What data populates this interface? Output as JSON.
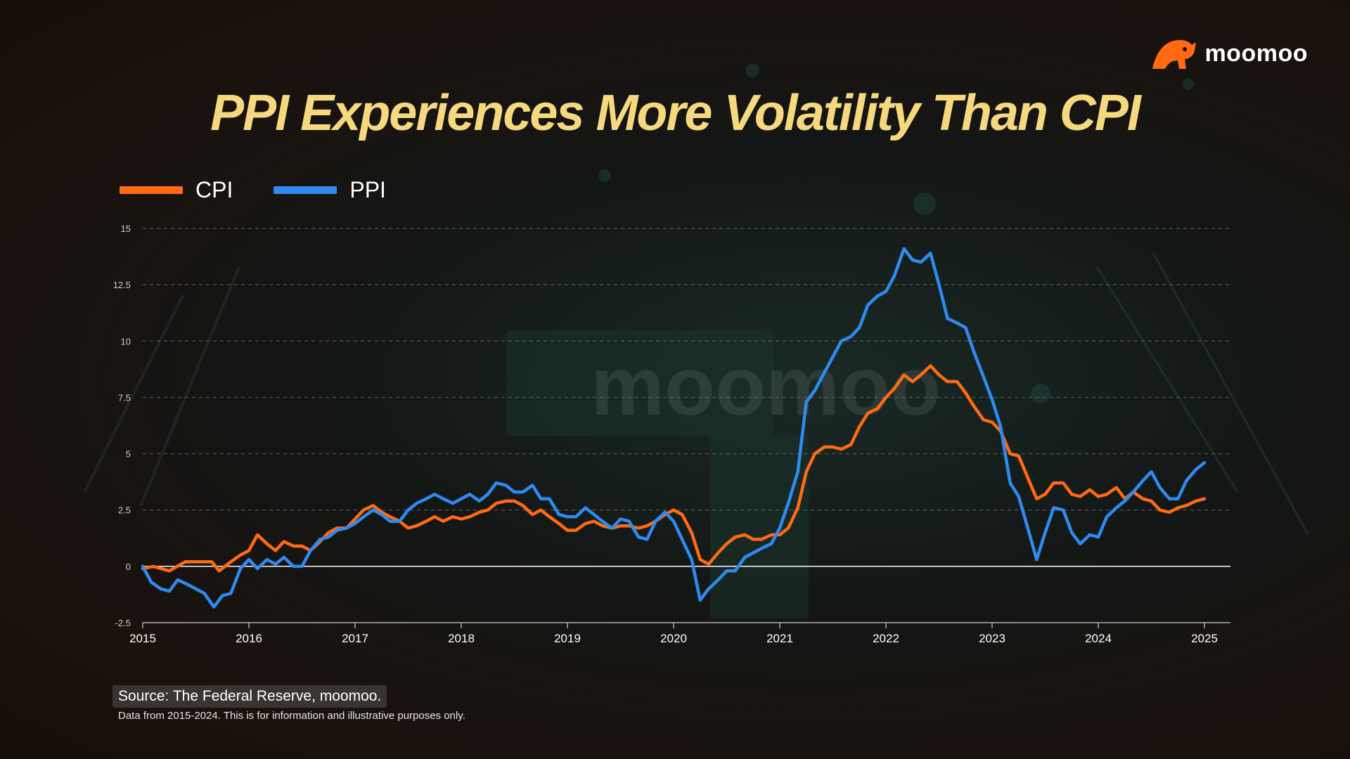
{
  "brand": {
    "name": "moomoo",
    "logo_icon": "bull-icon",
    "accent": "#ff6a13"
  },
  "title": "PPI Experiences More Volatility Than CPI",
  "watermark": "moomoo",
  "source": "Source: The Federal Reserve, moomoo.",
  "disclaimer": "Data from 2015-2024. This is for information and illustrative purposes only.",
  "legend": [
    {
      "name": "CPI",
      "color": "#ff6a13"
    },
    {
      "name": "PPI",
      "color": "#2f8bf0"
    }
  ],
  "chart_data": {
    "type": "line",
    "title": "PPI Experiences More Volatility Than CPI",
    "xlabel": "",
    "ylabel": "",
    "xlim": [
      2015,
      2025
    ],
    "ylim": [
      -2.5,
      15
    ],
    "xticks": [
      "2015",
      "2016",
      "2017",
      "2018",
      "2019",
      "2020",
      "2021",
      "2022",
      "2023",
      "2024",
      "2025"
    ],
    "yticks": [
      "15",
      "12.5",
      "10",
      "7.5",
      "5",
      "2.5",
      "0",
      "-2.5"
    ],
    "grid": true,
    "legend_position": "top-left",
    "series": [
      {
        "name": "CPI",
        "color": "#ff6a13",
        "points": [
          [
            2015.0,
            -0.1
          ],
          [
            2015.1,
            0.0
          ],
          [
            2015.25,
            -0.2
          ],
          [
            2015.4,
            0.2
          ],
          [
            2015.55,
            0.2
          ],
          [
            2015.65,
            0.2
          ],
          [
            2015.72,
            -0.2
          ],
          [
            2015.83,
            0.2
          ],
          [
            2015.92,
            0.5
          ],
          [
            2016.0,
            0.7
          ],
          [
            2016.08,
            1.4
          ],
          [
            2016.17,
            1.0
          ],
          [
            2016.25,
            0.7
          ],
          [
            2016.33,
            1.1
          ],
          [
            2016.42,
            0.9
          ],
          [
            2016.5,
            0.9
          ],
          [
            2016.58,
            0.7
          ],
          [
            2016.67,
            1.1
          ],
          [
            2016.75,
            1.5
          ],
          [
            2016.83,
            1.7
          ],
          [
            2016.92,
            1.7
          ],
          [
            2017.0,
            2.1
          ],
          [
            2017.08,
            2.5
          ],
          [
            2017.17,
            2.7
          ],
          [
            2017.25,
            2.4
          ],
          [
            2017.33,
            2.2
          ],
          [
            2017.42,
            2.0
          ],
          [
            2017.5,
            1.7
          ],
          [
            2017.58,
            1.8
          ],
          [
            2017.67,
            2.0
          ],
          [
            2017.75,
            2.2
          ],
          [
            2017.83,
            2.0
          ],
          [
            2017.92,
            2.2
          ],
          [
            2018.0,
            2.1
          ],
          [
            2018.08,
            2.2
          ],
          [
            2018.17,
            2.4
          ],
          [
            2018.25,
            2.5
          ],
          [
            2018.33,
            2.8
          ],
          [
            2018.42,
            2.9
          ],
          [
            2018.5,
            2.9
          ],
          [
            2018.58,
            2.7
          ],
          [
            2018.67,
            2.3
          ],
          [
            2018.75,
            2.5
          ],
          [
            2018.83,
            2.2
          ],
          [
            2018.92,
            1.9
          ],
          [
            2019.0,
            1.6
          ],
          [
            2019.08,
            1.6
          ],
          [
            2019.17,
            1.9
          ],
          [
            2019.25,
            2.0
          ],
          [
            2019.33,
            1.8
          ],
          [
            2019.42,
            1.7
          ],
          [
            2019.5,
            1.8
          ],
          [
            2019.58,
            1.8
          ],
          [
            2019.67,
            1.7
          ],
          [
            2019.75,
            1.8
          ],
          [
            2019.83,
            2.0
          ],
          [
            2019.92,
            2.3
          ],
          [
            2020.0,
            2.5
          ],
          [
            2020.08,
            2.3
          ],
          [
            2020.17,
            1.5
          ],
          [
            2020.25,
            0.3
          ],
          [
            2020.33,
            0.1
          ],
          [
            2020.42,
            0.6
          ],
          [
            2020.5,
            1.0
          ],
          [
            2020.58,
            1.3
          ],
          [
            2020.67,
            1.4
          ],
          [
            2020.75,
            1.2
          ],
          [
            2020.83,
            1.2
          ],
          [
            2020.92,
            1.4
          ],
          [
            2021.0,
            1.4
          ],
          [
            2021.08,
            1.7
          ],
          [
            2021.17,
            2.6
          ],
          [
            2021.25,
            4.2
          ],
          [
            2021.33,
            5.0
          ],
          [
            2021.42,
            5.3
          ],
          [
            2021.5,
            5.3
          ],
          [
            2021.58,
            5.2
          ],
          [
            2021.67,
            5.4
          ],
          [
            2021.75,
            6.2
          ],
          [
            2021.83,
            6.8
          ],
          [
            2021.92,
            7.0
          ],
          [
            2022.0,
            7.5
          ],
          [
            2022.08,
            7.9
          ],
          [
            2022.17,
            8.5
          ],
          [
            2022.25,
            8.2
          ],
          [
            2022.33,
            8.5
          ],
          [
            2022.42,
            8.9
          ],
          [
            2022.5,
            8.5
          ],
          [
            2022.58,
            8.2
          ],
          [
            2022.67,
            8.2
          ],
          [
            2022.75,
            7.7
          ],
          [
            2022.83,
            7.1
          ],
          [
            2022.92,
            6.5
          ],
          [
            2023.0,
            6.4
          ],
          [
            2023.08,
            6.0
          ],
          [
            2023.17,
            5.0
          ],
          [
            2023.25,
            4.9
          ],
          [
            2023.33,
            4.0
          ],
          [
            2023.42,
            3.0
          ],
          [
            2023.5,
            3.2
          ],
          [
            2023.58,
            3.7
          ],
          [
            2023.67,
            3.7
          ],
          [
            2023.75,
            3.2
          ],
          [
            2023.83,
            3.1
          ],
          [
            2023.92,
            3.4
          ],
          [
            2024.0,
            3.1
          ],
          [
            2024.08,
            3.2
          ],
          [
            2024.17,
            3.5
          ],
          [
            2024.25,
            3.0
          ],
          [
            2024.33,
            3.3
          ],
          [
            2024.42,
            3.0
          ],
          [
            2024.5,
            2.9
          ],
          [
            2024.58,
            2.5
          ],
          [
            2024.67,
            2.4
          ],
          [
            2024.75,
            2.6
          ],
          [
            2024.83,
            2.7
          ],
          [
            2024.92,
            2.9
          ],
          [
            2025.0,
            3.0
          ]
        ]
      },
      {
        "name": "PPI",
        "color": "#2f8bf0",
        "points": [
          [
            2015.0,
            0.0
          ],
          [
            2015.08,
            -0.7
          ],
          [
            2015.17,
            -1.0
          ],
          [
            2015.25,
            -1.1
          ],
          [
            2015.33,
            -0.6
          ],
          [
            2015.42,
            -0.8
          ],
          [
            2015.5,
            -1.0
          ],
          [
            2015.58,
            -1.2
          ],
          [
            2015.67,
            -1.8
          ],
          [
            2015.75,
            -1.3
          ],
          [
            2015.83,
            -1.2
          ],
          [
            2015.92,
            -0.1
          ],
          [
            2016.0,
            0.3
          ],
          [
            2016.08,
            -0.1
          ],
          [
            2016.17,
            0.3
          ],
          [
            2016.25,
            0.1
          ],
          [
            2016.33,
            0.4
          ],
          [
            2016.42,
            0.0
          ],
          [
            2016.5,
            0.0
          ],
          [
            2016.58,
            0.7
          ],
          [
            2016.67,
            1.2
          ],
          [
            2016.75,
            1.3
          ],
          [
            2016.83,
            1.6
          ],
          [
            2016.92,
            1.7
          ],
          [
            2017.0,
            1.9
          ],
          [
            2017.08,
            2.2
          ],
          [
            2017.17,
            2.5
          ],
          [
            2017.25,
            2.3
          ],
          [
            2017.33,
            2.0
          ],
          [
            2017.42,
            2.0
          ],
          [
            2017.5,
            2.5
          ],
          [
            2017.58,
            2.8
          ],
          [
            2017.67,
            3.0
          ],
          [
            2017.75,
            3.2
          ],
          [
            2017.83,
            3.0
          ],
          [
            2017.92,
            2.8
          ],
          [
            2018.0,
            3.0
          ],
          [
            2018.08,
            3.2
          ],
          [
            2018.17,
            2.9
          ],
          [
            2018.25,
            3.2
          ],
          [
            2018.33,
            3.7
          ],
          [
            2018.42,
            3.6
          ],
          [
            2018.5,
            3.3
          ],
          [
            2018.58,
            3.3
          ],
          [
            2018.67,
            3.6
          ],
          [
            2018.75,
            3.0
          ],
          [
            2018.83,
            3.0
          ],
          [
            2018.92,
            2.3
          ],
          [
            2019.0,
            2.2
          ],
          [
            2019.08,
            2.2
          ],
          [
            2019.17,
            2.6
          ],
          [
            2019.25,
            2.3
          ],
          [
            2019.33,
            2.0
          ],
          [
            2019.42,
            1.7
          ],
          [
            2019.5,
            2.1
          ],
          [
            2019.58,
            2.0
          ],
          [
            2019.67,
            1.3
          ],
          [
            2019.75,
            1.2
          ],
          [
            2019.83,
            2.0
          ],
          [
            2019.92,
            2.4
          ],
          [
            2020.0,
            2.0
          ],
          [
            2020.08,
            1.2
          ],
          [
            2020.17,
            0.3
          ],
          [
            2020.25,
            -1.5
          ],
          [
            2020.33,
            -1.0
          ],
          [
            2020.42,
            -0.6
          ],
          [
            2020.5,
            -0.2
          ],
          [
            2020.58,
            -0.2
          ],
          [
            2020.67,
            0.4
          ],
          [
            2020.75,
            0.6
          ],
          [
            2020.83,
            0.8
          ],
          [
            2020.92,
            1.0
          ],
          [
            2021.0,
            1.7
          ],
          [
            2021.08,
            2.8
          ],
          [
            2021.17,
            4.2
          ],
          [
            2021.25,
            7.3
          ],
          [
            2021.33,
            7.8
          ],
          [
            2021.42,
            8.6
          ],
          [
            2021.5,
            9.3
          ],
          [
            2021.58,
            10.0
          ],
          [
            2021.67,
            10.2
          ],
          [
            2021.75,
            10.6
          ],
          [
            2021.83,
            11.6
          ],
          [
            2021.92,
            12.0
          ],
          [
            2022.0,
            12.2
          ],
          [
            2022.08,
            12.9
          ],
          [
            2022.17,
            14.1
          ],
          [
            2022.25,
            13.6
          ],
          [
            2022.33,
            13.5
          ],
          [
            2022.42,
            13.9
          ],
          [
            2022.5,
            12.5
          ],
          [
            2022.58,
            11.0
          ],
          [
            2022.67,
            10.8
          ],
          [
            2022.75,
            10.6
          ],
          [
            2022.83,
            9.5
          ],
          [
            2022.92,
            8.4
          ],
          [
            2023.0,
            7.4
          ],
          [
            2023.08,
            6.2
          ],
          [
            2023.17,
            3.7
          ],
          [
            2023.25,
            3.1
          ],
          [
            2023.33,
            1.8
          ],
          [
            2023.42,
            0.3
          ],
          [
            2023.5,
            1.5
          ],
          [
            2023.58,
            2.6
          ],
          [
            2023.67,
            2.5
          ],
          [
            2023.75,
            1.5
          ],
          [
            2023.83,
            1.0
          ],
          [
            2023.92,
            1.4
          ],
          [
            2024.0,
            1.3
          ],
          [
            2024.08,
            2.2
          ],
          [
            2024.17,
            2.6
          ],
          [
            2024.25,
            2.9
          ],
          [
            2024.33,
            3.3
          ],
          [
            2024.42,
            3.8
          ],
          [
            2024.5,
            4.2
          ],
          [
            2024.58,
            3.5
          ],
          [
            2024.67,
            3.0
          ],
          [
            2024.75,
            3.0
          ],
          [
            2024.83,
            3.8
          ],
          [
            2024.92,
            4.3
          ],
          [
            2025.0,
            4.6
          ]
        ]
      }
    ]
  }
}
